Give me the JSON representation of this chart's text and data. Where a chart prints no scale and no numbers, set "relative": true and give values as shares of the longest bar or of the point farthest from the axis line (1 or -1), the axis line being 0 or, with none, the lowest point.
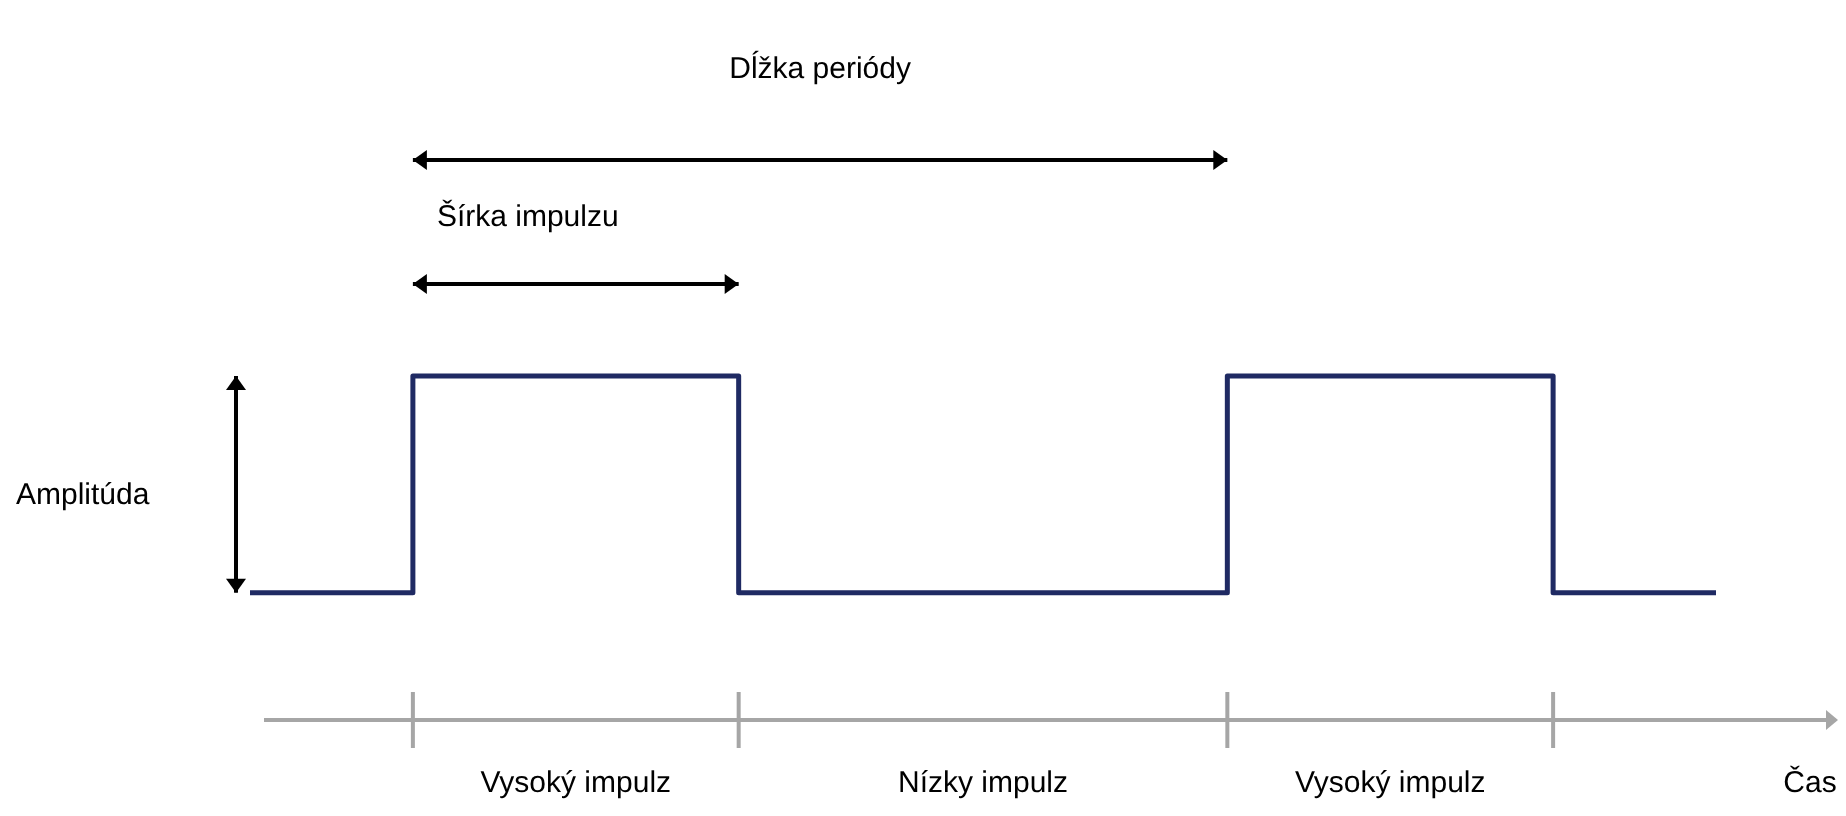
{
  "chart_data": {
    "type": "step",
    "relative": true,
    "xlabel": "Čas",
    "categories": [
      null,
      null,
      null,
      null,
      null,
      null,
      null,
      null,
      null,
      null
    ],
    "series": [
      {
        "color": "#1f2a63",
        "values": [
          0.37,
          1,
          1,
          0.37,
          0.37,
          0.37,
          1,
          1,
          0.37,
          0.37
        ]
      }
    ],
    "annotations": [
      "Dĺžka periódy",
      "Šírka impulzu",
      "Amplitúda",
      "Vysoký impulz",
      "Nízky impulz",
      "Vysoký impulz"
    ]
  }
}
